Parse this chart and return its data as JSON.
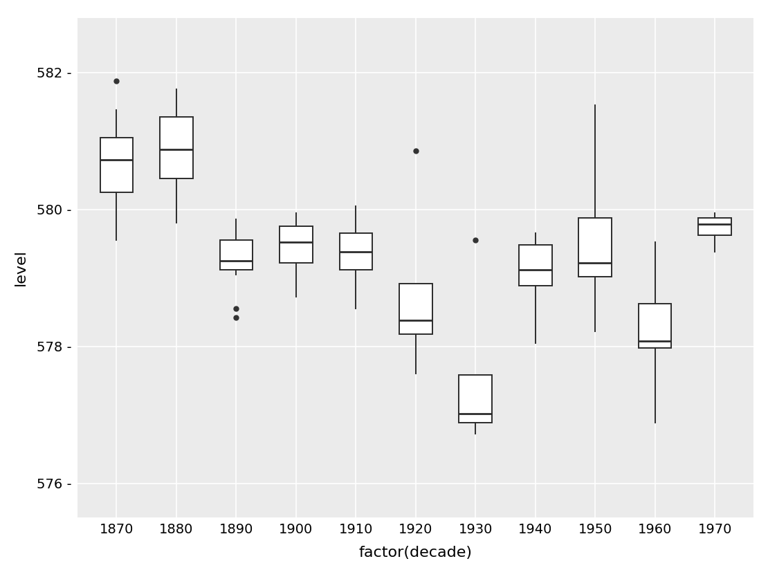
{
  "xlabel": "factor(decade)",
  "ylabel": "level",
  "plot_bg_color": "#EBEBEB",
  "fig_bg_color": "#FFFFFF",
  "grid_color": "#FFFFFF",
  "ylim": [
    575.5,
    582.8
  ],
  "yticks": [
    576,
    578,
    580,
    582
  ],
  "ytick_labels": [
    "576 -",
    "578 -",
    "580 -",
    "582 -"
  ],
  "decades": [
    1870,
    1880,
    1890,
    1900,
    1910,
    1920,
    1930,
    1940,
    1950,
    1960,
    1970
  ],
  "boxes": [
    {
      "dec": 1870,
      "whislo": 579.55,
      "q1": 580.25,
      "med": 580.72,
      "q3": 581.05,
      "whishi": 581.45,
      "fliers": [
        581.88
      ]
    },
    {
      "dec": 1880,
      "whislo": 579.8,
      "q1": 580.45,
      "med": 580.88,
      "q3": 581.35,
      "whishi": 581.75,
      "fliers": []
    },
    {
      "dec": 1890,
      "whislo": 579.05,
      "q1": 579.12,
      "med": 579.25,
      "q3": 579.55,
      "whishi": 579.85,
      "fliers": [
        578.55,
        578.42
      ]
    },
    {
      "dec": 1900,
      "whislo": 578.72,
      "q1": 579.22,
      "med": 579.52,
      "q3": 579.75,
      "whishi": 579.95,
      "fliers": []
    },
    {
      "dec": 1910,
      "whislo": 578.55,
      "q1": 579.12,
      "med": 579.38,
      "q3": 579.65,
      "whishi": 580.05,
      "fliers": []
    },
    {
      "dec": 1920,
      "whislo": 577.6,
      "q1": 578.18,
      "med": 578.38,
      "q3": 578.92,
      "whishi": 578.92,
      "fliers": [
        580.85
      ]
    },
    {
      "dec": 1930,
      "whislo": 576.72,
      "q1": 576.88,
      "med": 577.02,
      "q3": 577.58,
      "whishi": 577.58,
      "fliers": [
        579.55
      ]
    },
    {
      "dec": 1940,
      "whislo": 578.05,
      "q1": 578.88,
      "med": 579.12,
      "q3": 579.48,
      "whishi": 579.65,
      "fliers": []
    },
    {
      "dec": 1950,
      "whislo": 578.22,
      "q1": 579.02,
      "med": 579.22,
      "q3": 579.88,
      "whishi": 581.52,
      "fliers": []
    },
    {
      "dec": 1960,
      "whislo": 576.88,
      "q1": 577.98,
      "med": 578.08,
      "q3": 578.62,
      "whishi": 579.52,
      "fliers": []
    },
    {
      "dec": 1970,
      "whislo": 579.38,
      "q1": 579.62,
      "med": 579.78,
      "q3": 579.88,
      "whishi": 579.95,
      "fliers": []
    }
  ],
  "box_facecolor": "#FFFFFF",
  "box_edgecolor": "#2B2B2B",
  "median_color": "#2B2B2B",
  "whisker_color": "#2B2B2B",
  "flier_color": "#333333",
  "linewidth": 1.4,
  "median_linewidth": 2.0,
  "figsize": [
    11.23,
    8.5
  ],
  "dpi": 100,
  "box_width": 0.55
}
